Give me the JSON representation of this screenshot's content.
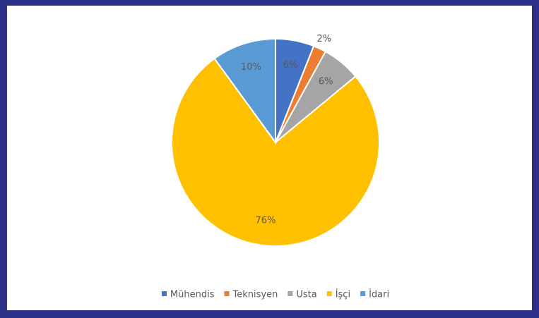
{
  "chart_data": {
    "type": "pie",
    "categories": [
      "Mühendis",
      "Teknisyen",
      "Usta",
      "İşçi",
      "İdari"
    ],
    "values": [
      6,
      2,
      6,
      76,
      10
    ],
    "value_labels": [
      "6%",
      "2%",
      "6%",
      "76%",
      "10%"
    ],
    "colors": [
      "#4472c4",
      "#ed7d31",
      "#a5a5a5",
      "#ffc000",
      "#5b9bd5"
    ],
    "legend": "bottom"
  }
}
